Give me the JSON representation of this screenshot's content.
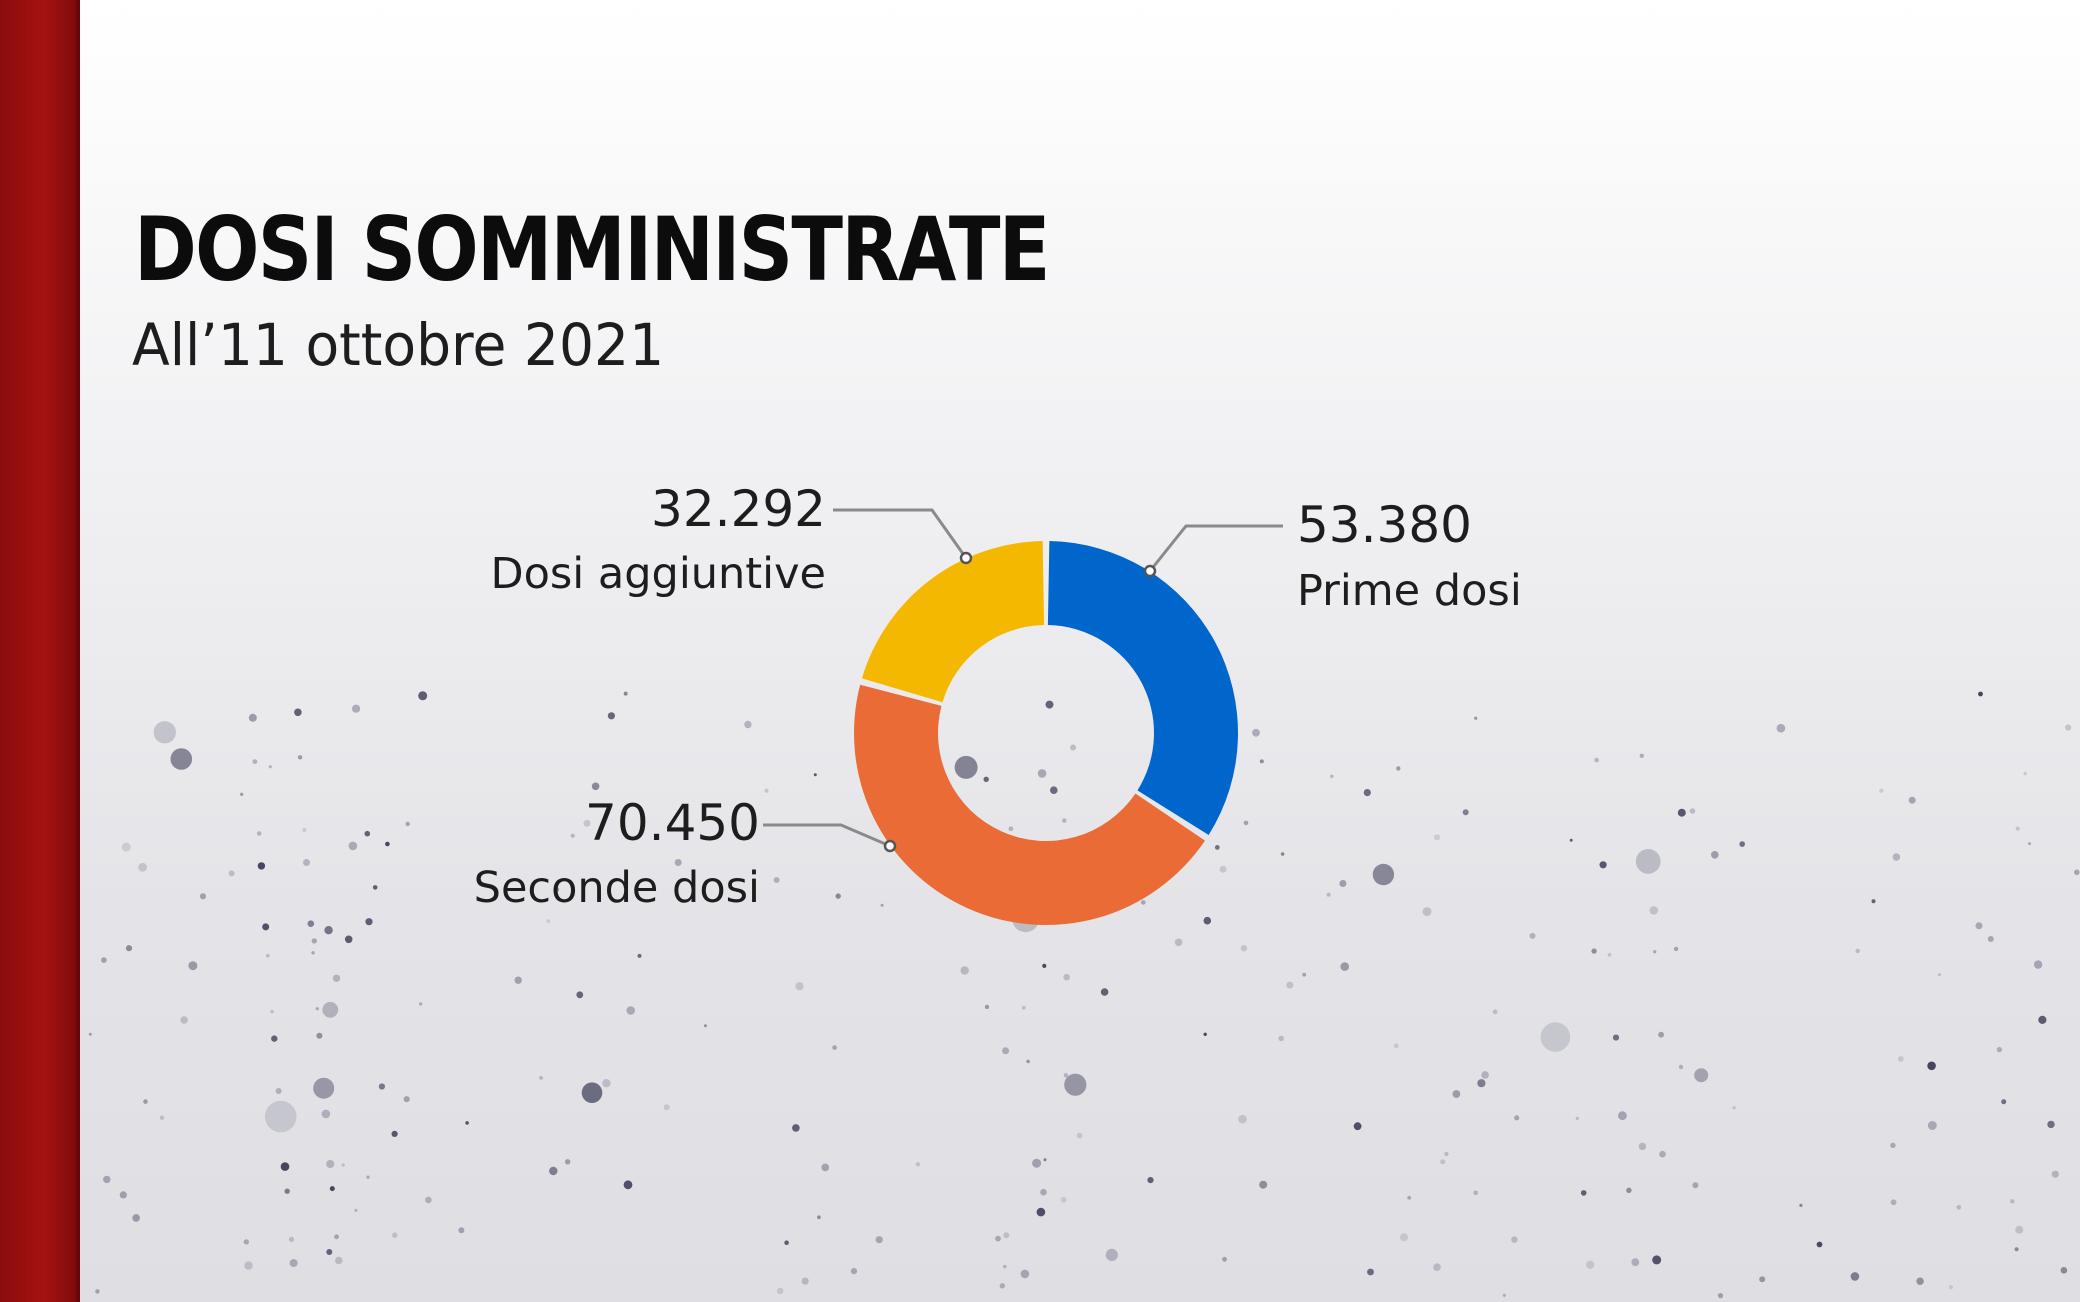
{
  "header": {
    "title": "DOSI SOMMINISTRATE",
    "subtitle": "All’11 ottobre 2021"
  },
  "chart_data": {
    "type": "pie",
    "title": "DOSI SOMMINISTRATE",
    "subtitle": "All’11 ottobre 2021",
    "donut": true,
    "slices": [
      {
        "label": "Prime dosi",
        "value": 53380,
        "display": "53.380",
        "color": "#0066cc"
      },
      {
        "label": "Seconde dosi",
        "value": 70450,
        "display": "70.450",
        "color": "#ea6b35"
      },
      {
        "label": "Dosi aggiuntive",
        "value": 32292,
        "display": "32.292",
        "color": "#f5b800"
      }
    ]
  }
}
